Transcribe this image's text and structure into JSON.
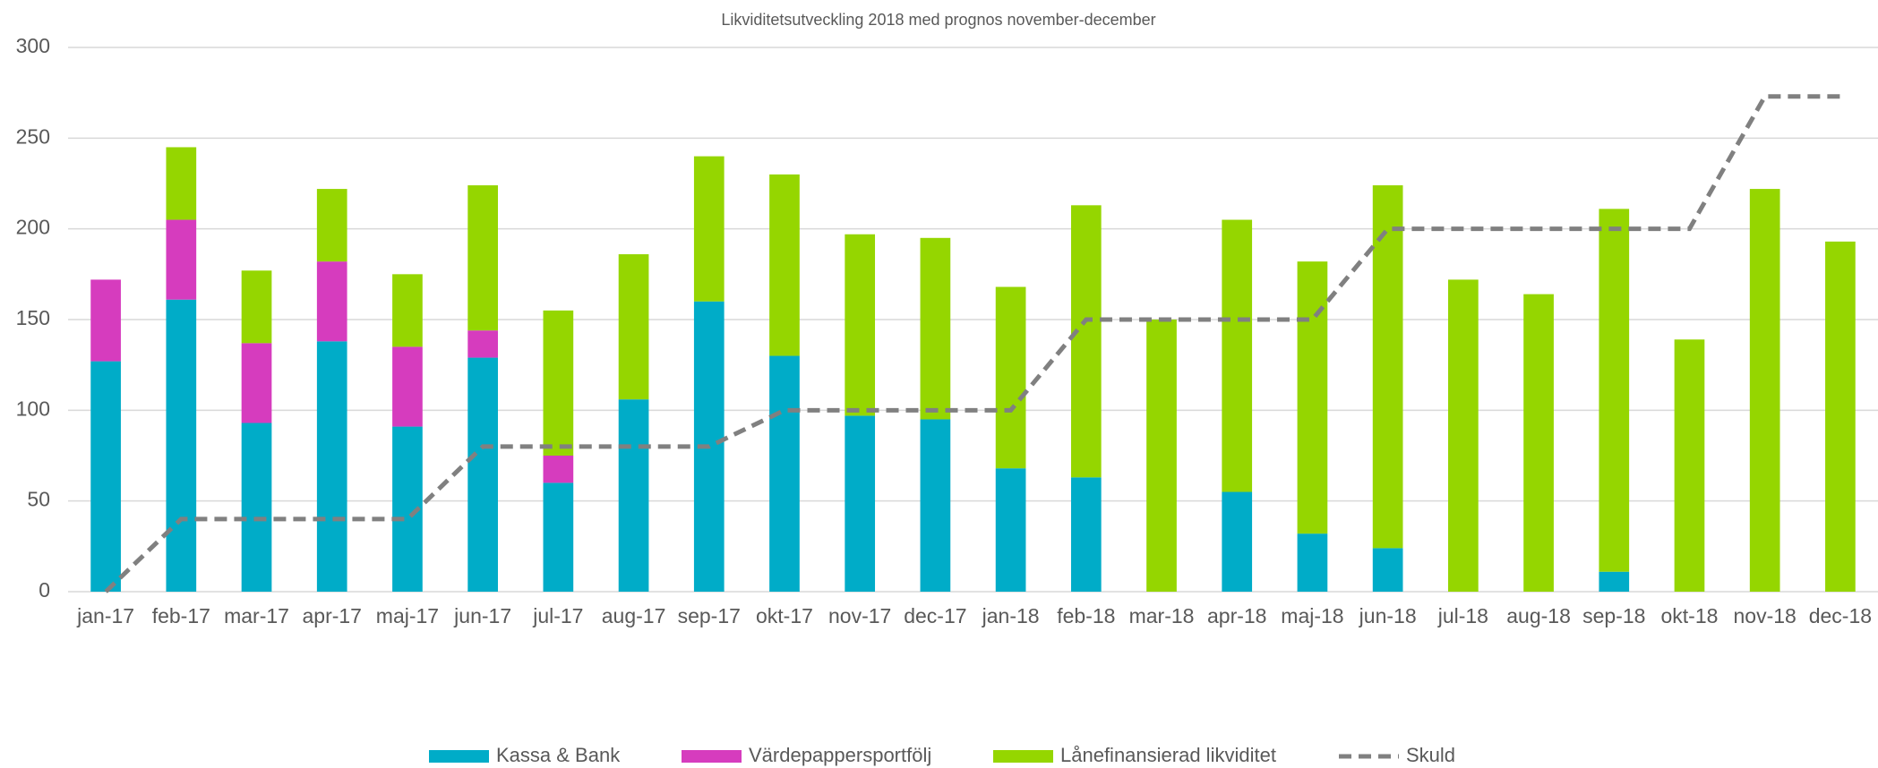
{
  "chart_data": {
    "type": "bar",
    "stacked": true,
    "title": "Likviditetsutveckling 2018 med prognos november-december",
    "categories": [
      "jan-17",
      "feb-17",
      "mar-17",
      "apr-17",
      "maj-17",
      "jun-17",
      "jul-17",
      "aug-17",
      "sep-17",
      "okt-17",
      "nov-17",
      "dec-17",
      "jan-18",
      "feb-18",
      "mar-18",
      "apr-18",
      "maj-18",
      "jun-18",
      "jul-18",
      "aug-18",
      "sep-18",
      "okt-18",
      "nov-18",
      "dec-18"
    ],
    "series": [
      {
        "name": "Kassa & Bank",
        "color": "#00acc8",
        "type": "bar",
        "values": [
          127,
          161,
          93,
          138,
          91,
          129,
          60,
          106,
          160,
          130,
          97,
          95,
          68,
          63,
          0,
          55,
          32,
          24,
          0,
          0,
          11,
          0,
          0,
          0
        ]
      },
      {
        "name": "Värdepappersportfölj",
        "color": "#d63cbe",
        "type": "bar",
        "values": [
          45,
          44,
          44,
          44,
          44,
          15,
          15,
          0,
          0,
          0,
          0,
          0,
          0,
          0,
          0,
          0,
          0,
          0,
          0,
          0,
          0,
          0,
          0,
          0
        ]
      },
      {
        "name": "Lånefinansierad likviditet",
        "color": "#95d600",
        "type": "bar",
        "values": [
          0,
          40,
          40,
          40,
          40,
          80,
          80,
          80,
          80,
          100,
          100,
          100,
          100,
          150,
          150,
          150,
          150,
          200,
          172,
          164,
          200,
          139,
          222,
          193
        ]
      },
      {
        "name": "Skuld",
        "color": "#808080",
        "type": "line",
        "dashed": true,
        "values": [
          0,
          40,
          40,
          40,
          40,
          80,
          80,
          80,
          80,
          100,
          100,
          100,
          100,
          150,
          150,
          150,
          150,
          200,
          200,
          200,
          200,
          200,
          273,
          273
        ]
      }
    ],
    "ylim": [
      0,
      300
    ],
    "yticks": [
      0,
      50,
      100,
      150,
      200,
      250,
      300
    ],
    "grid": true,
    "legend": "bottom"
  }
}
